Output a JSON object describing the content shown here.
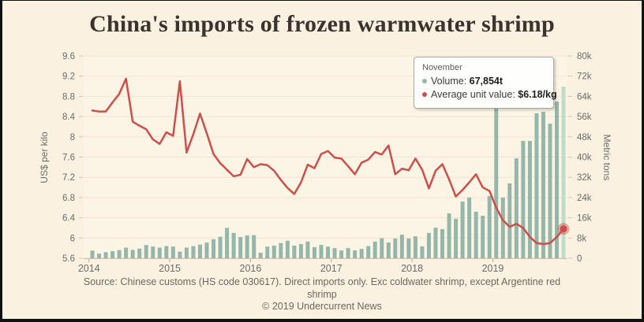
{
  "window": {
    "bg": "#fbf1e0",
    "frame_border": "#111111"
  },
  "title": {
    "text": "China's imports of frozen warmwater shrimp",
    "color": "#3a332e"
  },
  "tooltip": {
    "period": "November",
    "rows": [
      {
        "bullet_color": "#95b6ab",
        "label": "Volume: ",
        "value": "67,854t"
      },
      {
        "bullet_color": "#cb4f4b",
        "label": "Average unit value: ",
        "value": "$6.18/kg"
      }
    ]
  },
  "footer": {
    "lines": [
      "Source: Chinese customs (HS code 030617). Direct imports only. Exc coldwater shrimp, except Argentine red",
      "shrimp",
      "© 2019 Undercurrent News"
    ]
  },
  "chart_data": {
    "type": "combo_bar_line",
    "plot_bg": "#fcf4e4",
    "grid_color": "#f1e3d1",
    "axis_line_color": "#c9c0b2",
    "x_axis": {
      "start": "2014-01",
      "end": "2019-11",
      "months": 71,
      "tick_labels": [
        "2014",
        "2015",
        "2016",
        "2017",
        "2018",
        "2019"
      ]
    },
    "left_axis": {
      "title": "US$ per kilo",
      "min": 5.6,
      "max": 9.6,
      "step": 0.4,
      "tick_labels": [
        "9.6",
        "9.2",
        "8.8",
        "8.4",
        "8",
        "7.6",
        "7.2",
        "6.8",
        "6.4",
        "6",
        "5.6"
      ]
    },
    "right_axis": {
      "title": "Metric tons",
      "min": 0,
      "max": 80000,
      "step": 8000,
      "tick_labels": [
        "80k",
        "72k",
        "64k",
        "56k",
        "48k",
        "40k",
        "32k",
        "24k",
        "16k",
        "8k",
        "0"
      ]
    },
    "legend_position": "none",
    "grid": "horizontal-only",
    "highlight": {
      "index": 70,
      "month": "November",
      "volume_t": 67854,
      "unit_value_usd_kg": 6.18
    },
    "series": [
      {
        "name": "Volume",
        "type": "bar",
        "axis": "right",
        "unit": "metric tons",
        "color": "#95b6ab",
        "highlight_color": "#bfdccb",
        "values": [
          3000,
          1800,
          2400,
          2800,
          3200,
          4200,
          3300,
          3800,
          5200,
          4600,
          4200,
          4800,
          4600,
          2600,
          4200,
          4800,
          5400,
          6200,
          7500,
          8500,
          12000,
          10000,
          8400,
          9000,
          9100,
          2200,
          4600,
          5000,
          6000,
          6900,
          5000,
          5600,
          6600,
          4400,
          5300,
          4600,
          4000,
          3100,
          4000,
          3100,
          3700,
          4800,
          6600,
          7900,
          6200,
          7800,
          9300,
          7800,
          8700,
          4700,
          10000,
          12100,
          11500,
          17700,
          15600,
          22400,
          24000,
          18400,
          16800,
          24600,
          62000,
          24000,
          29600,
          39500,
          46400,
          46400,
          57300,
          57900,
          53200,
          62000,
          67854
        ]
      },
      {
        "name": "Average unit value",
        "type": "line",
        "axis": "left",
        "unit": "US$/kg",
        "color": "#cb4f4b",
        "values": [
          8.52,
          8.5,
          8.5,
          8.68,
          8.85,
          9.15,
          8.3,
          8.22,
          8.15,
          7.95,
          7.86,
          8.09,
          8.02,
          9.1,
          7.69,
          8.05,
          8.46,
          8.07,
          7.66,
          7.48,
          7.35,
          7.22,
          7.25,
          7.56,
          7.4,
          7.46,
          7.44,
          7.33,
          7.15,
          6.99,
          6.87,
          7.1,
          7.45,
          7.38,
          7.66,
          7.72,
          7.59,
          7.57,
          7.42,
          7.26,
          7.49,
          7.55,
          7.7,
          7.65,
          7.83,
          7.26,
          7.37,
          7.34,
          7.57,
          7.35,
          6.98,
          7.33,
          7.46,
          7.16,
          6.82,
          6.95,
          7.1,
          7.26,
          7.0,
          6.93,
          6.6,
          6.35,
          6.22,
          6.28,
          6.2,
          6.02,
          5.9,
          5.88,
          5.9,
          6.02,
          6.18
        ]
      }
    ]
  }
}
